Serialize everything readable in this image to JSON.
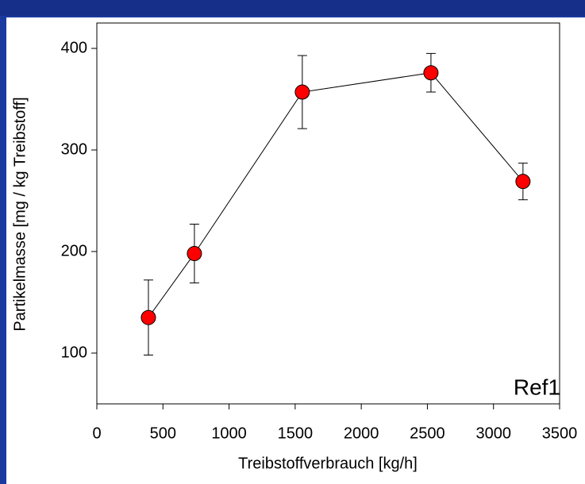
{
  "chart_data": {
    "type": "scatter",
    "x_label": "Treibstoffverbrauch [kg/h]",
    "y_label": "Partikelmasse [mg / kg Treibstoff]",
    "annotation": "Ref1",
    "series": [
      {
        "color": "#ff0000",
        "x": [
          390,
          738,
          1554,
          2527,
          3223
        ],
        "values": [
          135,
          198,
          357,
          376,
          269
        ],
        "errors": [
          37,
          29,
          36,
          19,
          18
        ]
      }
    ],
    "connect": true,
    "xlim": [
      0,
      3500
    ],
    "xticks": [
      0,
      500,
      1000,
      1500,
      2000,
      2500,
      3000,
      3500
    ],
    "ylim": [
      50,
      425
    ],
    "yticks": [
      100,
      200,
      300,
      400
    ]
  }
}
